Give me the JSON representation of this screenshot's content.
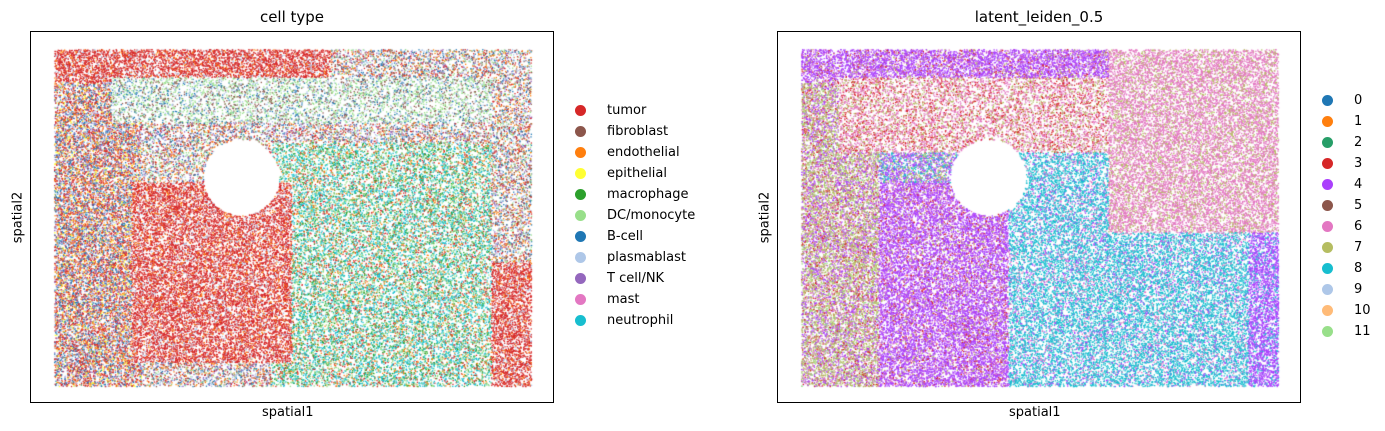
{
  "chart_data": [
    {
      "type": "scatter",
      "title": "cell type",
      "xlabel": "spatial1",
      "ylabel": "spatial2",
      "grid": false,
      "legend_position": "right",
      "ticks": "none",
      "series": [
        {
          "name": "tumor",
          "color": "#d62728"
        },
        {
          "name": "fibroblast",
          "color": "#8c564b"
        },
        {
          "name": "endothelial",
          "color": "#ff7f0e"
        },
        {
          "name": "epithelial",
          "color": "#ffff33"
        },
        {
          "name": "macrophage",
          "color": "#2ca02c"
        },
        {
          "name": "DC/monocyte",
          "color": "#98df8a"
        },
        {
          "name": "B-cell",
          "color": "#1f77b4"
        },
        {
          "name": "plasmablast",
          "color": "#aec7e8"
        },
        {
          "name": "T cell/NK",
          "color": "#9467bd"
        },
        {
          "name": "mast",
          "color": "#e377c2"
        },
        {
          "name": "neutrophil",
          "color": "#17becf"
        }
      ]
    },
    {
      "type": "scatter",
      "title": "latent_leiden_0.5",
      "xlabel": "spatial1",
      "ylabel": "spatial2",
      "grid": false,
      "legend_position": "right",
      "ticks": "none",
      "series": [
        {
          "name": "0",
          "color": "#1f77b4"
        },
        {
          "name": "1",
          "color": "#ff7f0e"
        },
        {
          "name": "2",
          "color": "#279e68"
        },
        {
          "name": "3",
          "color": "#d62728"
        },
        {
          "name": "4",
          "color": "#aa40fc"
        },
        {
          "name": "5",
          "color": "#8c564b"
        },
        {
          "name": "6",
          "color": "#e377c2"
        },
        {
          "name": "7",
          "color": "#b5bd61"
        },
        {
          "name": "8",
          "color": "#17becf"
        },
        {
          "name": "9",
          "color": "#aec7e8"
        },
        {
          "name": "10",
          "color": "#ffbb78"
        },
        {
          "name": "11",
          "color": "#98df8a"
        }
      ]
    }
  ]
}
